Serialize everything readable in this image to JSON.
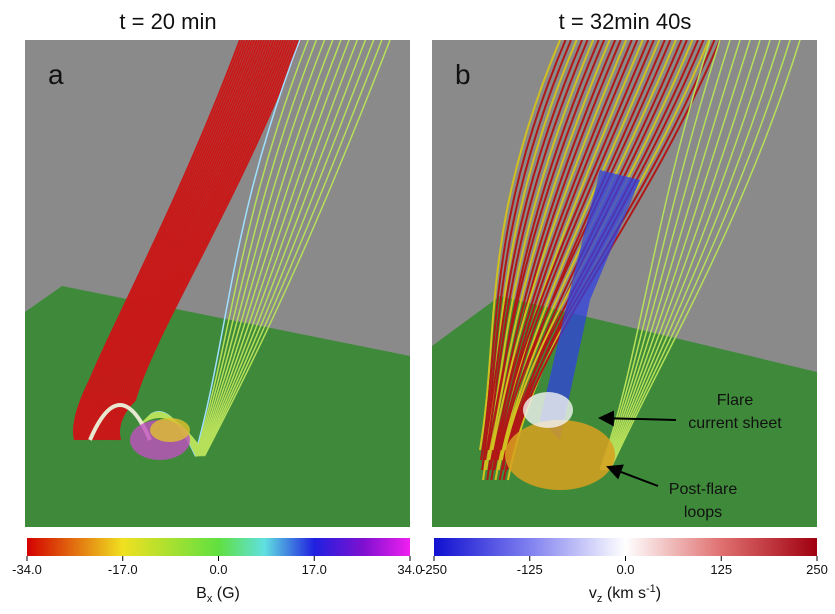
{
  "panels": [
    {
      "title": "t = 20 min",
      "label": "a",
      "colorbar": {
        "lim": [
          -34,
          34
        ],
        "ticks": [
          {
            "value": -34,
            "label": "-34.0"
          },
          {
            "value": -17,
            "label": "-17.0"
          },
          {
            "value": 0,
            "label": "0.0"
          },
          {
            "value": 17,
            "label": "17.0"
          },
          {
            "value": 34,
            "label": "34.0"
          }
        ],
        "label": {
          "symbol": "B",
          "sub": "x",
          "unit": " (G)"
        }
      }
    },
    {
      "title": "t = 32min 40s",
      "label": "b",
      "colorbar": {
        "lim": [
          -250,
          250
        ],
        "ticks": [
          {
            "value": -250,
            "label": "-250"
          },
          {
            "value": -125,
            "label": "-125"
          },
          {
            "value": 0,
            "label": "0.0"
          },
          {
            "value": 125,
            "label": "125"
          },
          {
            "value": 250,
            "label": "250"
          }
        ],
        "label": {
          "symbol": "v",
          "sub": "z",
          "unit": " (km s",
          "sup": "-1",
          "close": ")"
        }
      },
      "annotations": [
        {
          "lines": [
            "Flare",
            "current sheet"
          ]
        },
        {
          "lines": [
            "Post-flare",
            "loops"
          ]
        }
      ]
    }
  ]
}
